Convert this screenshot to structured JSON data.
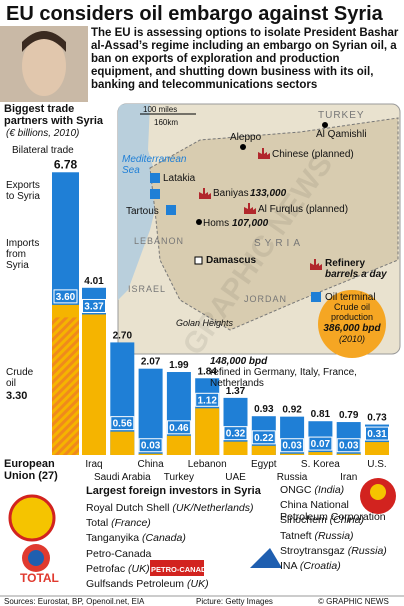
{
  "header": {
    "title": "EU considers oil embargo against Syria",
    "text": "The EU is assessing options to isolate President Bashar al-Assad’s regime including an embargo on Syrian oil, a ban on exports of exploration and production equipment, and shutting down business with its oil, banking and telecommunications sectors"
  },
  "chart_data": {
    "type": "bar",
    "title": "Biggest trade partners with Syria",
    "subtitle": "(€ billions, 2010)",
    "categories": [
      "European Union (27)",
      "Iraq",
      "Saudi Arabia",
      "China",
      "Turkey",
      "Lebanon",
      "UAE",
      "Egypt",
      "Russia",
      "S. Korea",
      "Iran",
      "U.S."
    ],
    "series": [
      {
        "name": "Bilateral trade",
        "color": "#1f7fd6",
        "values": [
          6.78,
          4.01,
          2.7,
          2.07,
          1.99,
          1.84,
          1.37,
          0.93,
          0.92,
          0.81,
          0.79,
          0.73
        ],
        "value_labels": [
          "6.78",
          "4.01",
          "2.70",
          "2.07",
          "1.99",
          "1.84",
          "1.37",
          "0.93",
          "0.92",
          "0.81",
          "0.79",
          "0.73"
        ]
      },
      {
        "name": "Imports from Syria",
        "color": "#f5b400",
        "values": [
          3.6,
          3.37,
          0.56,
          0.03,
          0.46,
          1.12,
          0.32,
          0.22,
          0.03,
          0.07,
          0.03,
          0.31
        ],
        "value_labels": [
          "3.60",
          "3.37",
          "0.56",
          "0.03",
          "0.46",
          "1.12",
          "0.32",
          "0.22",
          "0.03",
          "0.07",
          "0.03",
          "0.31"
        ]
      }
    ],
    "crude_oil": {
      "name": "Crude oil",
      "value": 3.3,
      "label": "3.30",
      "color": "#f08a1c"
    },
    "annotations": [
      "Exports to Syria"
    ]
  },
  "map": {
    "scale_miles": "100 miles",
    "scale_km": "160km",
    "turkey": "TURKEY",
    "qamishli": "Al Qamishli",
    "aleppo": "Aleppo",
    "sea": "Mediterranean Sea",
    "latakia": "Latakia",
    "baniyas": "Baniyas",
    "baniyas_bpd": "133,000",
    "chinese": "Chinese (planned)",
    "furqlus": "Al Furqlus (planned)",
    "tartous": "Tartous",
    "homs": "Homs",
    "homs_bpd": "107,000",
    "lebanon": "LEBANON",
    "syria": "SYRIA",
    "damascus": "Damascus",
    "israel": "ISRAEL",
    "golan": "Golan Heights",
    "jordan": "JORDAN",
    "refinery": "Refinery",
    "refinery_unit": "barrels a day",
    "terminal": "Oil terminal",
    "production_title": "Crude oil production",
    "production_value": "386,000 bpd",
    "production_year": "(2010)",
    "refined_value": "148,000 bpd",
    "refined_text": "refined in Germany, Italy, France, Netherlands",
    "watermark": "GRAPHIC NEWS"
  },
  "investors": {
    "title": "Largest foreign investors in Syria",
    "left": [
      {
        "company": "Royal Dutch Shell",
        "country": "(UK/Netherlands)"
      },
      {
        "company": "Total",
        "country": "(France)"
      },
      {
        "company": "Tanganyika",
        "country": "(Canada)"
      },
      {
        "company": "Petro-Canada"
      },
      {
        "company": "Petrofac",
        "country": "(UK)"
      },
      {
        "company": "Gulfsands Petroleum",
        "country": "(UK)"
      }
    ],
    "right": [
      {
        "company": "ONGC",
        "country": "(India)"
      },
      {
        "company": "China National Petroleum Corporation"
      },
      {
        "company": "Sinochem",
        "country": "(China)"
      },
      {
        "company": "Tatneft",
        "country": "(Russia)"
      },
      {
        "company": "Stroytransgaz",
        "country": "(Russia)"
      },
      {
        "company": "INA",
        "country": "(Croatia)"
      }
    ],
    "logo_total": "TOTAL",
    "logo_petrocanada": "PETRO-CANADA"
  },
  "footer": {
    "sources": "Sources: Eurostat, BP, Openoil.net, EIA",
    "picture": "Picture: Getty Images",
    "credit": "© GRAPHIC NEWS"
  }
}
